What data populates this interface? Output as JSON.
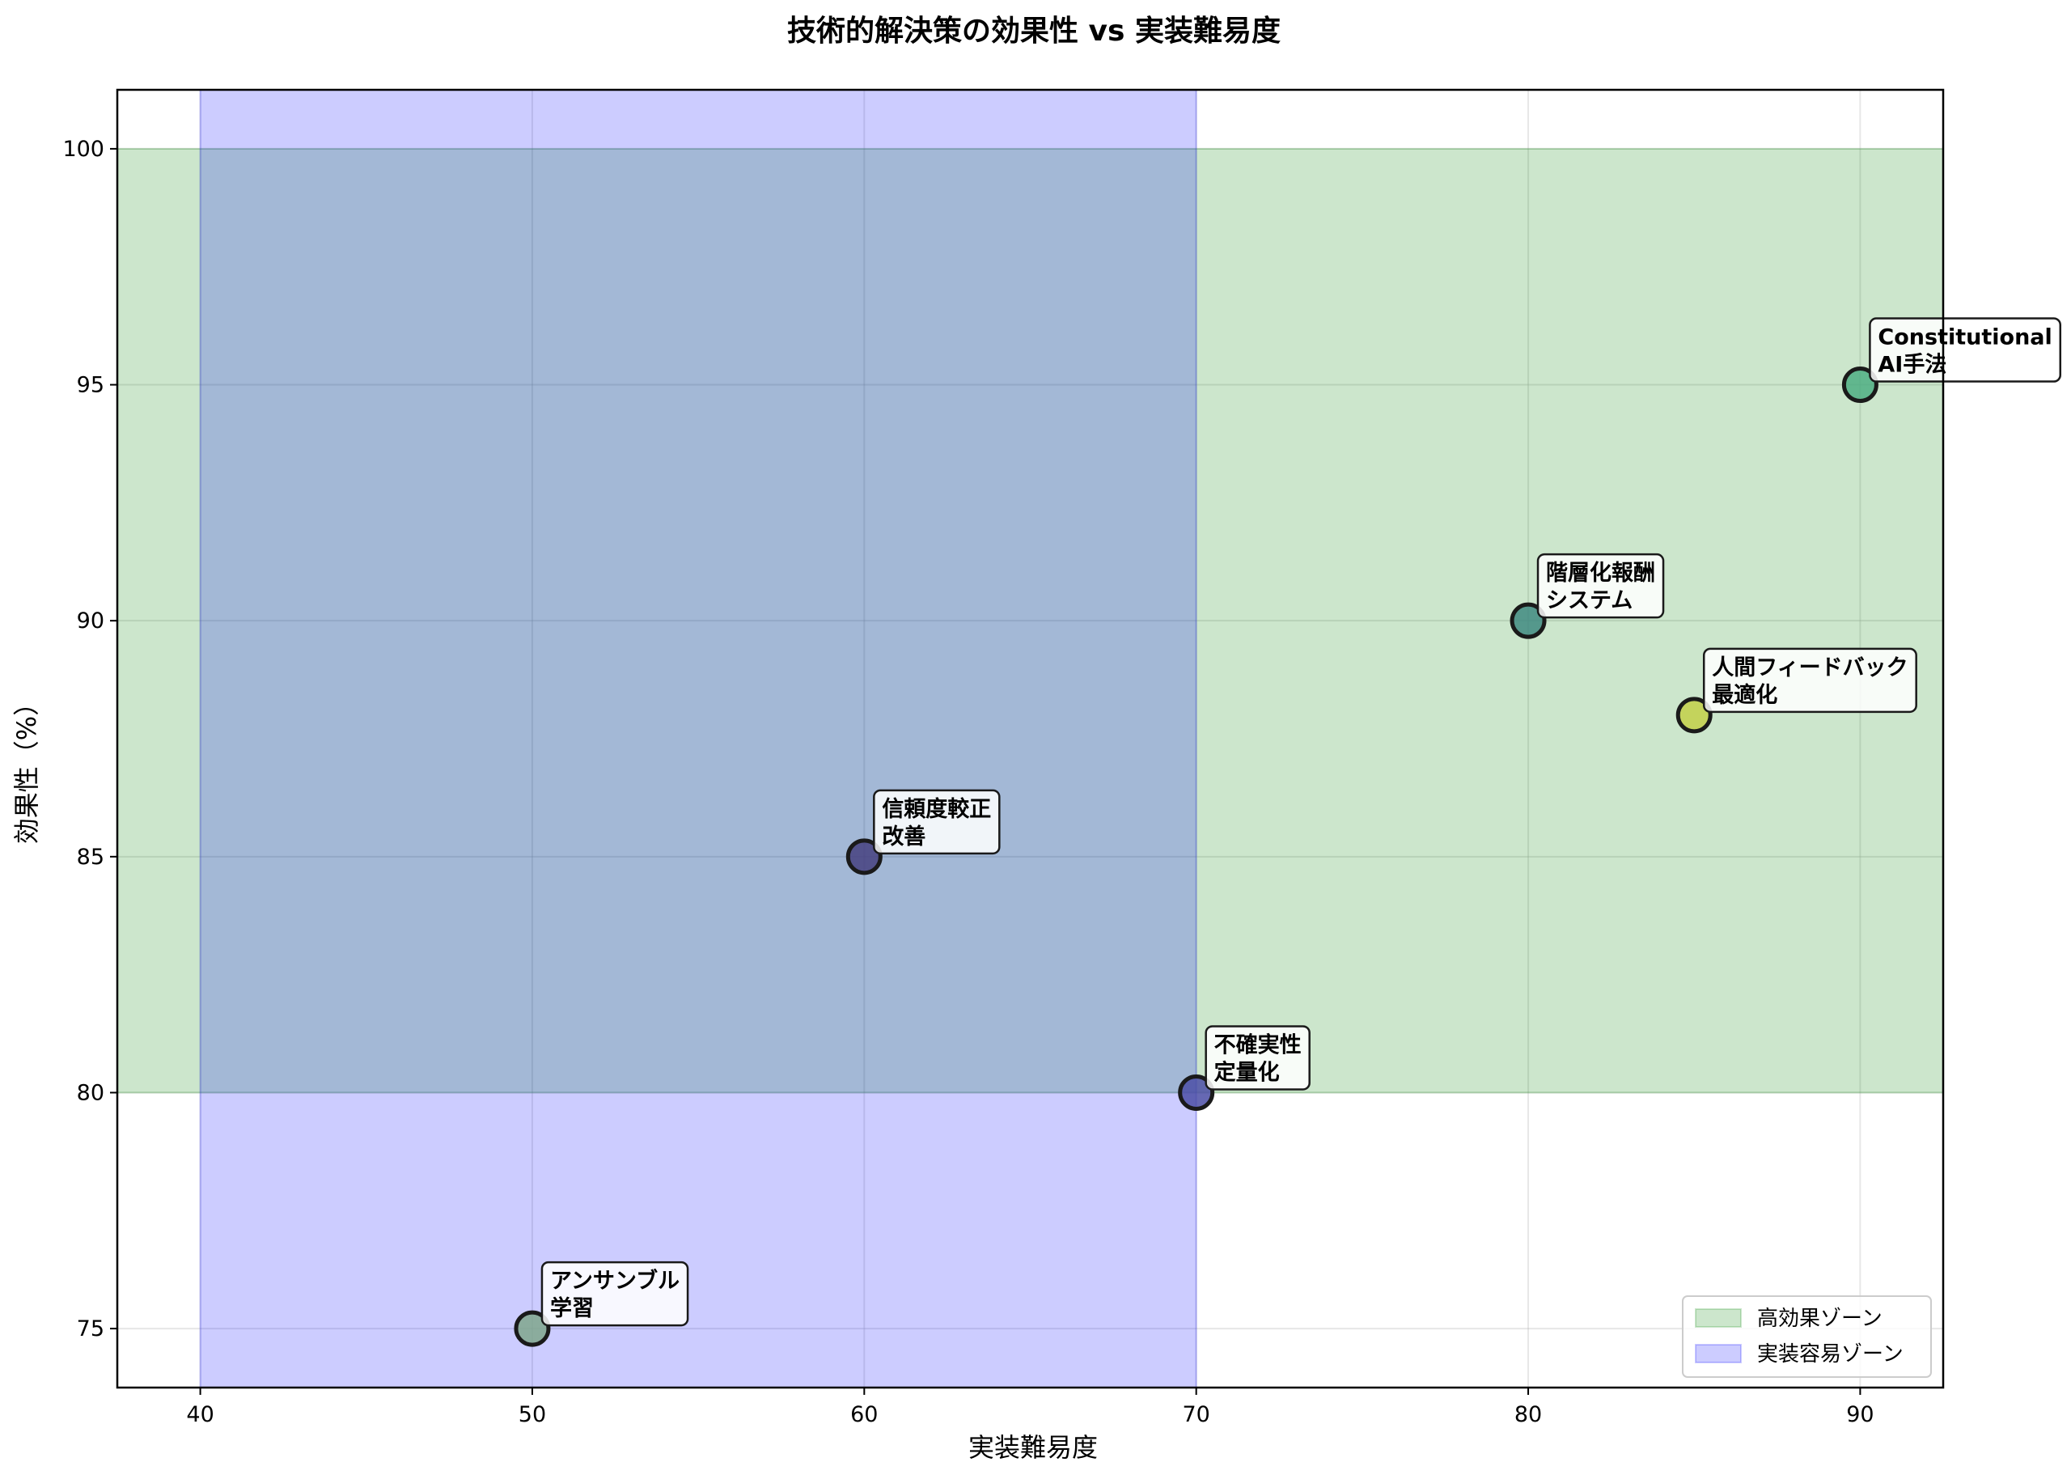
{
  "chart_data": {
    "type": "scatter",
    "title": "技術的解決策の効果性 vs 実装難易度",
    "xlabel": "実装難易度",
    "ylabel": "効果性（%）",
    "xlim": [
      37.5,
      92.5
    ],
    "ylim": [
      73.75,
      101.25
    ],
    "xticks": [
      40,
      50,
      60,
      70,
      80,
      90
    ],
    "yticks": [
      75,
      80,
      85,
      90,
      95,
      100
    ],
    "grid": true,
    "legend_position": "lower-right",
    "points": [
      {
        "label": "Constitutional\nAI手法",
        "x": 90,
        "y": 95,
        "color": "#4dae83"
      },
      {
        "label": "階層化報酬\nシステム",
        "x": 80,
        "y": 90,
        "color": "#3f8a80"
      },
      {
        "label": "人間フィードバック\n最適化",
        "x": 85,
        "y": 88,
        "color": "#c2cf48"
      },
      {
        "label": "信頼度較正\n改善",
        "x": 60,
        "y": 85,
        "color": "#45407f"
      },
      {
        "label": "不確実性\n定量化",
        "x": 70,
        "y": 80,
        "color": "#4b4ea6"
      },
      {
        "label": "アンサンブル\n学習",
        "x": 50,
        "y": 75,
        "color": "#7fa68c"
      }
    ],
    "regions": [
      {
        "name": "高効果ゾーン",
        "axis": "y",
        "range": [
          80,
          100
        ],
        "color": "#008000",
        "opacity": 0.2
      },
      {
        "name": "実装容易ゾーン",
        "axis": "x",
        "range": [
          40,
          70
        ],
        "color": "#0000ff",
        "opacity": 0.2
      }
    ]
  }
}
